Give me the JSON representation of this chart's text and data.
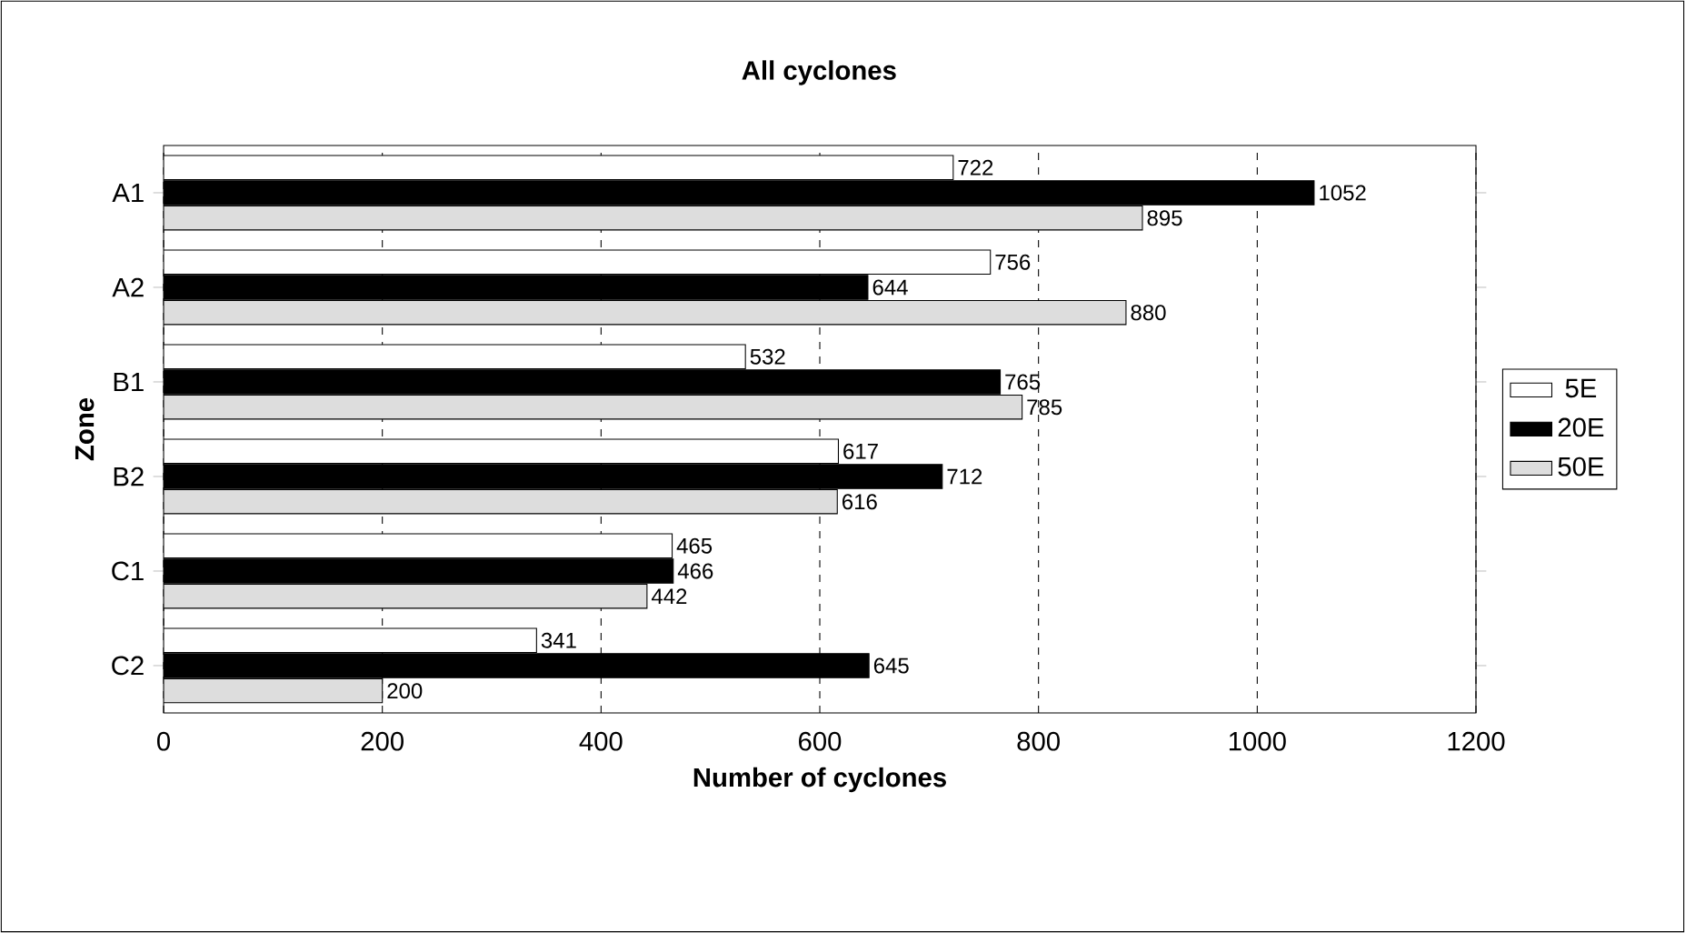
{
  "chart_data": {
    "type": "bar",
    "orientation": "horizontal",
    "title": "All cyclones",
    "xlabel": "Number of cyclones",
    "ylabel": "Zone",
    "categories": [
      "A1",
      "A2",
      "B1",
      "B2",
      "C1",
      "C2"
    ],
    "series": [
      {
        "name": "5E",
        "color": "#ffffff",
        "values": [
          722,
          756,
          532,
          617,
          465,
          341
        ]
      },
      {
        "name": "20E",
        "color": "#000000",
        "values": [
          1052,
          644,
          765,
          712,
          466,
          645
        ]
      },
      {
        "name": "50E",
        "color": "#dddddd",
        "values": [
          895,
          880,
          785,
          616,
          442,
          200
        ]
      }
    ],
    "xlim": [
      0,
      1200
    ],
    "xticks": [
      0,
      200,
      400,
      600,
      800,
      1000,
      1200
    ],
    "grid": "x",
    "legend": "right",
    "data_labels": true
  }
}
